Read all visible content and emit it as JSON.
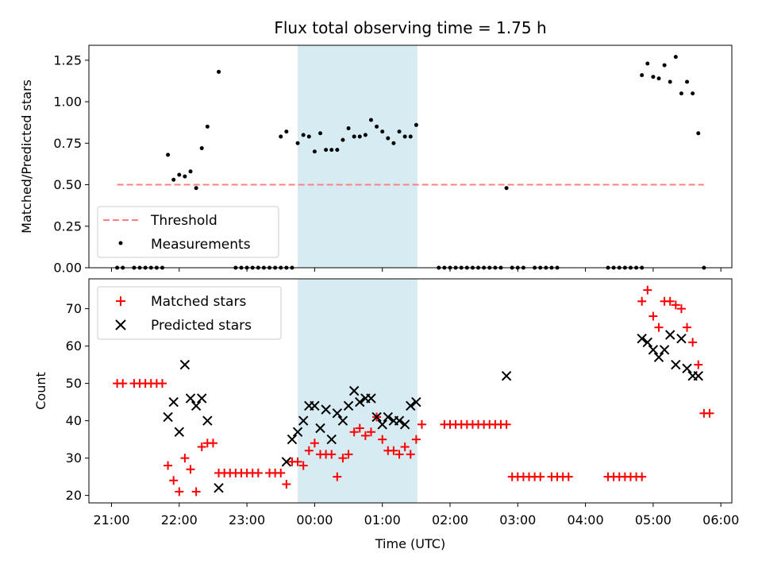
{
  "figure": {
    "title": "Flux total observing time = 1.75 h",
    "xlabel": "Time (UTC)",
    "x_ticks": [
      "21:00",
      "22:00",
      "23:00",
      "00:00",
      "01:00",
      "02:00",
      "03:00",
      "04:00",
      "05:00",
      "06:00"
    ],
    "highlight_span": [
      "23:45",
      "01:31"
    ],
    "highlight_color": "#add8e6"
  },
  "chart_data": [
    {
      "type": "scatter",
      "title": "Flux total observing time = 1.75 h",
      "ylabel": "Matched/Predicted stars",
      "ylim": [
        0,
        1.34
      ],
      "y_ticks": [
        "0.00",
        "0.25",
        "0.50",
        "0.75",
        "1.00",
        "1.25"
      ],
      "legend": {
        "placement": "lower-left",
        "entries": [
          "Threshold",
          "Measurements"
        ]
      },
      "threshold": {
        "name": "Threshold",
        "value": 0.5,
        "x_range": [
          "21:05",
          "05:45"
        ],
        "color": "#ff7f7f",
        "style": "dashed"
      },
      "series": [
        {
          "name": "Measurements",
          "color": "#000000",
          "points": [
            [
              "21:05",
              0
            ],
            [
              "21:10",
              0
            ],
            [
              "21:20",
              0
            ],
            [
              "21:25",
              0
            ],
            [
              "21:30",
              0
            ],
            [
              "21:35",
              0
            ],
            [
              "21:40",
              0
            ],
            [
              "21:45",
              0
            ],
            [
              "21:50",
              0.68
            ],
            [
              "21:55",
              0.53
            ],
            [
              "22:00",
              0.56
            ],
            [
              "22:05",
              0.55
            ],
            [
              "22:10",
              0.58
            ],
            [
              "22:15",
              0.48
            ],
            [
              "22:20",
              0.72
            ],
            [
              "22:25",
              0.85
            ],
            [
              "22:35",
              1.18
            ],
            [
              "22:50",
              0
            ],
            [
              "22:55",
              0
            ],
            [
              "23:00",
              0
            ],
            [
              "23:05",
              0
            ],
            [
              "23:10",
              0
            ],
            [
              "23:15",
              0
            ],
            [
              "23:20",
              0
            ],
            [
              "23:25",
              0
            ],
            [
              "23:30",
              0
            ],
            [
              "23:35",
              0
            ],
            [
              "23:40",
              0
            ],
            [
              "23:30",
              0.79
            ],
            [
              "23:35",
              0.82
            ],
            [
              "23:45",
              0.75
            ],
            [
              "23:50",
              0.8
            ],
            [
              "23:55",
              0.79
            ],
            [
              "00:00",
              0.7
            ],
            [
              "00:05",
              0.81
            ],
            [
              "00:10",
              0.71
            ],
            [
              "00:15",
              0.71
            ],
            [
              "00:20",
              0.71
            ],
            [
              "00:25",
              0.77
            ],
            [
              "00:30",
              0.84
            ],
            [
              "00:35",
              0.79
            ],
            [
              "00:40",
              0.79
            ],
            [
              "00:45",
              0.8
            ],
            [
              "00:50",
              0.89
            ],
            [
              "00:55",
              0.85
            ],
            [
              "01:00",
              0.82
            ],
            [
              "01:05",
              0.78
            ],
            [
              "01:10",
              0.75
            ],
            [
              "01:15",
              0.82
            ],
            [
              "01:20",
              0.79
            ],
            [
              "01:25",
              0.79
            ],
            [
              "01:30",
              0.86
            ],
            [
              "01:50",
              0
            ],
            [
              "01:55",
              0
            ],
            [
              "02:00",
              0
            ],
            [
              "02:05",
              0
            ],
            [
              "02:10",
              0
            ],
            [
              "02:15",
              0
            ],
            [
              "02:20",
              0
            ],
            [
              "02:25",
              0
            ],
            [
              "02:30",
              0
            ],
            [
              "02:35",
              0
            ],
            [
              "02:40",
              0
            ],
            [
              "02:45",
              0
            ],
            [
              "02:50",
              0.48
            ],
            [
              "02:55",
              0
            ],
            [
              "03:00",
              0
            ],
            [
              "03:05",
              0
            ],
            [
              "03:15",
              0
            ],
            [
              "03:20",
              0
            ],
            [
              "03:25",
              0
            ],
            [
              "03:30",
              0
            ],
            [
              "03:35",
              0
            ],
            [
              "04:20",
              0
            ],
            [
              "04:25",
              0
            ],
            [
              "04:30",
              0
            ],
            [
              "04:35",
              0
            ],
            [
              "04:40",
              0
            ],
            [
              "04:45",
              0
            ],
            [
              "04:50",
              0
            ],
            [
              "04:50",
              1.16
            ],
            [
              "04:55",
              1.23
            ],
            [
              "05:00",
              1.15
            ],
            [
              "05:05",
              1.14
            ],
            [
              "05:10",
              1.22
            ],
            [
              "05:15",
              1.12
            ],
            [
              "05:20",
              1.27
            ],
            [
              "05:25",
              1.05
            ],
            [
              "05:30",
              1.12
            ],
            [
              "05:35",
              1.05
            ],
            [
              "05:40",
              0.81
            ],
            [
              "05:45",
              0
            ]
          ]
        }
      ]
    },
    {
      "type": "scatter",
      "ylabel": "Count",
      "ylim": [
        18,
        78
      ],
      "y_ticks": [
        "20",
        "30",
        "40",
        "50",
        "60",
        "70"
      ],
      "legend": {
        "placement": "top-left",
        "entries": [
          "Matched stars",
          "Predicted stars"
        ]
      },
      "series": [
        {
          "name": "Matched stars",
          "marker": "plus",
          "color": "#ff0000",
          "points": [
            [
              "21:05",
              50
            ],
            [
              "21:10",
              50
            ],
            [
              "21:20",
              50
            ],
            [
              "21:25",
              50
            ],
            [
              "21:30",
              50
            ],
            [
              "21:35",
              50
            ],
            [
              "21:40",
              50
            ],
            [
              "21:45",
              50
            ],
            [
              "21:50",
              28
            ],
            [
              "21:55",
              24
            ],
            [
              "22:00",
              21
            ],
            [
              "22:05",
              30
            ],
            [
              "22:10",
              27
            ],
            [
              "22:15",
              21
            ],
            [
              "22:20",
              33
            ],
            [
              "22:25",
              34
            ],
            [
              "22:30",
              34
            ],
            [
              "22:35",
              26
            ],
            [
              "22:40",
              26
            ],
            [
              "22:45",
              26
            ],
            [
              "22:50",
              26
            ],
            [
              "22:55",
              26
            ],
            [
              "23:00",
              26
            ],
            [
              "23:05",
              26
            ],
            [
              "23:10",
              26
            ],
            [
              "23:20",
              26
            ],
            [
              "23:25",
              26
            ],
            [
              "23:30",
              26
            ],
            [
              "23:35",
              23
            ],
            [
              "23:40",
              29
            ],
            [
              "23:45",
              29
            ],
            [
              "23:50",
              28
            ],
            [
              "23:55",
              32
            ],
            [
              "00:00",
              34
            ],
            [
              "00:05",
              31
            ],
            [
              "00:10",
              31
            ],
            [
              "00:15",
              31
            ],
            [
              "00:20",
              25
            ],
            [
              "00:25",
              30
            ],
            [
              "00:30",
              31
            ],
            [
              "00:35",
              37
            ],
            [
              "00:40",
              38
            ],
            [
              "00:45",
              36
            ],
            [
              "00:50",
              37
            ],
            [
              "00:55",
              41
            ],
            [
              "01:00",
              35
            ],
            [
              "01:05",
              32
            ],
            [
              "01:10",
              32
            ],
            [
              "01:15",
              31
            ],
            [
              "01:20",
              33
            ],
            [
              "01:25",
              31
            ],
            [
              "01:30",
              35
            ],
            [
              "01:35",
              39
            ],
            [
              "01:55",
              39
            ],
            [
              "02:00",
              39
            ],
            [
              "02:05",
              39
            ],
            [
              "02:10",
              39
            ],
            [
              "02:15",
              39
            ],
            [
              "02:20",
              39
            ],
            [
              "02:25",
              39
            ],
            [
              "02:30",
              39
            ],
            [
              "02:35",
              39
            ],
            [
              "02:40",
              39
            ],
            [
              "02:45",
              39
            ],
            [
              "02:50",
              39
            ],
            [
              "02:55",
              25
            ],
            [
              "03:00",
              25
            ],
            [
              "03:05",
              25
            ],
            [
              "03:10",
              25
            ],
            [
              "03:15",
              25
            ],
            [
              "03:20",
              25
            ],
            [
              "03:30",
              25
            ],
            [
              "03:35",
              25
            ],
            [
              "03:40",
              25
            ],
            [
              "03:45",
              25
            ],
            [
              "04:20",
              25
            ],
            [
              "04:25",
              25
            ],
            [
              "04:30",
              25
            ],
            [
              "04:35",
              25
            ],
            [
              "04:40",
              25
            ],
            [
              "04:45",
              25
            ],
            [
              "04:50",
              25
            ],
            [
              "04:50",
              72
            ],
            [
              "04:55",
              75
            ],
            [
              "05:00",
              68
            ],
            [
              "05:05",
              65
            ],
            [
              "05:10",
              72
            ],
            [
              "05:15",
              72
            ],
            [
              "05:20",
              71
            ],
            [
              "05:25",
              70
            ],
            [
              "05:30",
              65
            ],
            [
              "05:35",
              61
            ],
            [
              "05:40",
              55
            ],
            [
              "05:45",
              42
            ],
            [
              "05:50",
              42
            ]
          ]
        },
        {
          "name": "Predicted stars",
          "marker": "x",
          "color": "#000000",
          "points": [
            [
              "21:50",
              41
            ],
            [
              "21:55",
              45
            ],
            [
              "22:00",
              37
            ],
            [
              "22:05",
              55
            ],
            [
              "22:10",
              46
            ],
            [
              "22:15",
              44
            ],
            [
              "22:20",
              46
            ],
            [
              "22:25",
              40
            ],
            [
              "22:35",
              22
            ],
            [
              "23:35",
              29
            ],
            [
              "23:40",
              35
            ],
            [
              "23:45",
              37
            ],
            [
              "23:50",
              40
            ],
            [
              "23:55",
              44
            ],
            [
              "00:00",
              44
            ],
            [
              "00:05",
              38
            ],
            [
              "00:10",
              43
            ],
            [
              "00:15",
              35
            ],
            [
              "00:20",
              42
            ],
            [
              "00:25",
              40
            ],
            [
              "00:30",
              44
            ],
            [
              "00:35",
              48
            ],
            [
              "00:40",
              45
            ],
            [
              "00:45",
              46
            ],
            [
              "00:50",
              46
            ],
            [
              "00:55",
              41
            ],
            [
              "01:00",
              39
            ],
            [
              "01:05",
              41
            ],
            [
              "01:10",
              40
            ],
            [
              "01:15",
              40
            ],
            [
              "01:20",
              39
            ],
            [
              "01:25",
              44
            ],
            [
              "01:30",
              45
            ],
            [
              "02:50",
              52
            ],
            [
              "04:50",
              62
            ],
            [
              "04:55",
              61
            ],
            [
              "05:00",
              59
            ],
            [
              "05:05",
              57
            ],
            [
              "05:10",
              59
            ],
            [
              "05:15",
              63
            ],
            [
              "05:20",
              55
            ],
            [
              "05:25",
              62
            ],
            [
              "05:30",
              54
            ],
            [
              "05:35",
              52
            ],
            [
              "05:40",
              52
            ]
          ]
        }
      ]
    }
  ]
}
